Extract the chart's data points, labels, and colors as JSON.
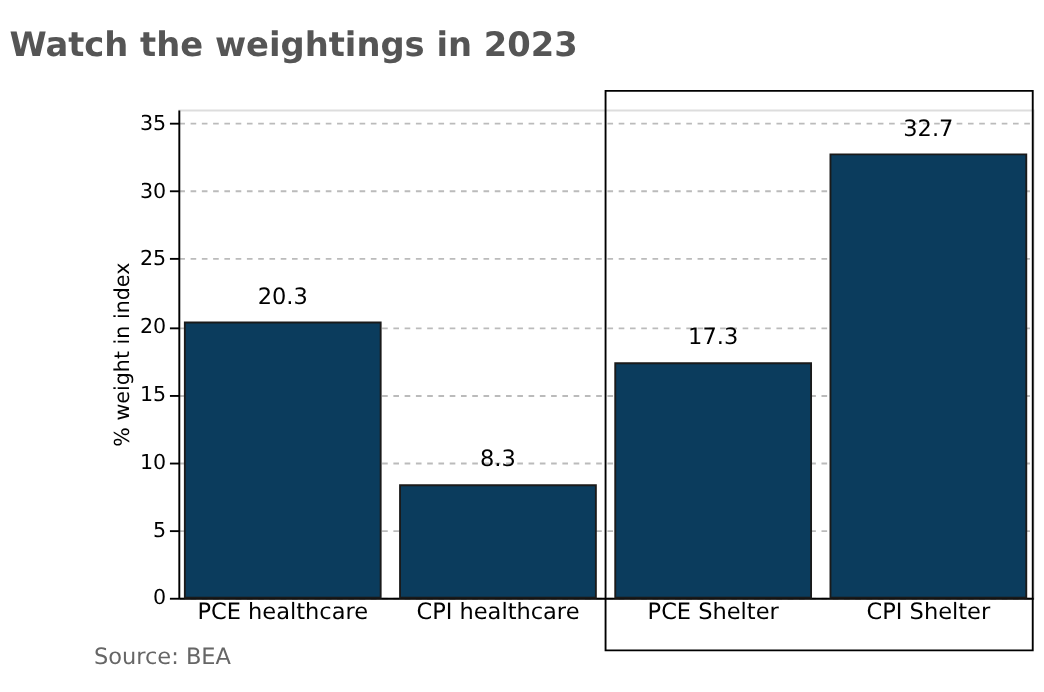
{
  "chart_data": {
    "type": "bar",
    "title": "Watch the weightings in 2023",
    "ylabel": "% weight in index",
    "categories": [
      "PCE healthcare",
      "CPI healthcare",
      "PCE Shelter",
      "CPI Shelter"
    ],
    "values": [
      20.3,
      8.3,
      17.3,
      32.7
    ],
    "color": "#0b3c5d",
    "ylim": [
      0,
      36
    ],
    "yticks": [
      0,
      5,
      10,
      15,
      20,
      25,
      30,
      35
    ],
    "grid": "y",
    "data_labels": true,
    "annotations": [
      "Source: BEA"
    ]
  }
}
